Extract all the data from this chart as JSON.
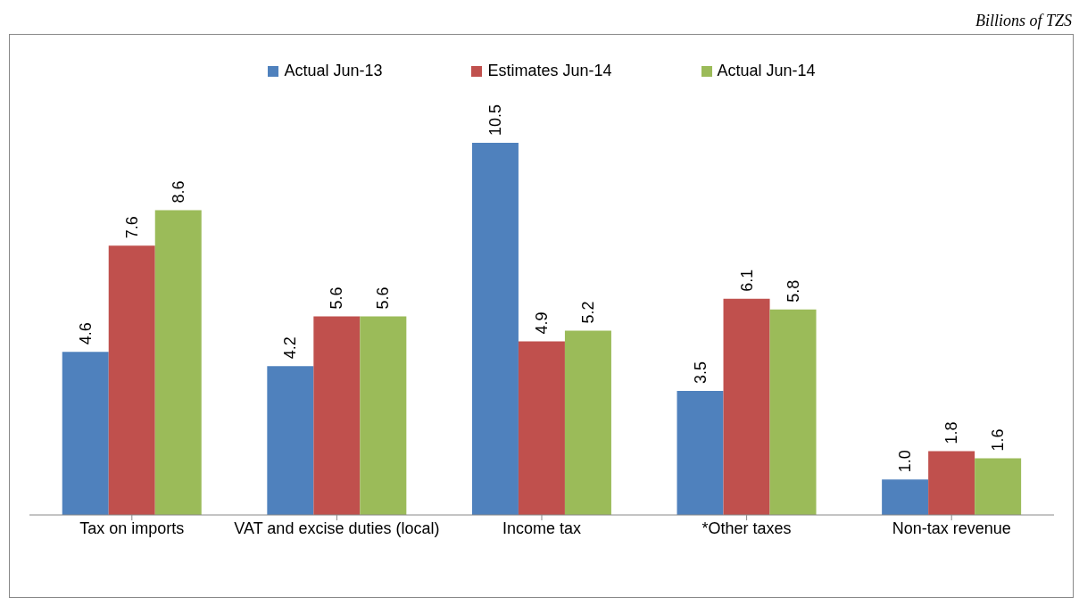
{
  "chart_data": {
    "type": "bar",
    "categories": [
      "Tax on imports",
      "VAT and excise duties (local)",
      "Income tax",
      "*Other taxes",
      "Non-tax revenue"
    ],
    "series": [
      {
        "name": "Actual Jun-13",
        "color": "#4f81bd",
        "values": [
          4.6,
          4.2,
          10.5,
          3.5,
          1.0
        ],
        "value_labels": [
          "4.6",
          "4.2",
          "10.5",
          "3.5",
          "1.0"
        ]
      },
      {
        "name": "Estimates Jun-14",
        "color": "#c0504d",
        "values": [
          7.6,
          5.6,
          4.9,
          6.1,
          1.8
        ],
        "value_labels": [
          "7.6",
          "5.6",
          "4.9",
          "6.1",
          "1.8"
        ]
      },
      {
        "name": "Actual Jun-14",
        "color": "#9bbb59",
        "values": [
          8.6,
          5.6,
          5.2,
          5.8,
          1.6
        ],
        "value_labels": [
          "8.6",
          "5.6",
          "5.2",
          "5.8",
          "1.6"
        ]
      }
    ],
    "legend": "top",
    "annotations": [
      "Billions of TZS"
    ]
  }
}
